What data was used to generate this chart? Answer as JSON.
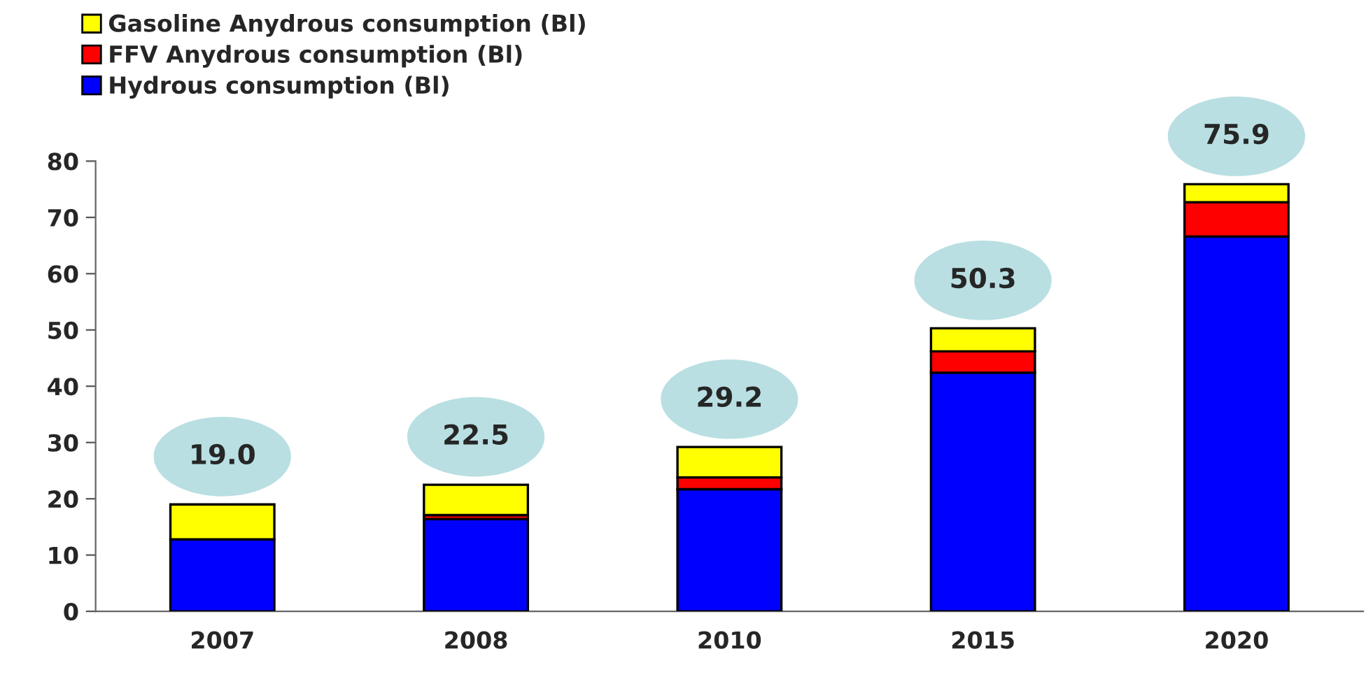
{
  "chart_data": {
    "type": "bar",
    "stacked": true,
    "categories": [
      "2007",
      "2008",
      "2010",
      "2015",
      "2020"
    ],
    "series": [
      {
        "name": "Hydrous consumption (Bl)",
        "color": "#0000ff",
        "values": [
          12.8,
          16.4,
          21.7,
          42.4,
          66.6
        ]
      },
      {
        "name": "FFV Anydrous consumption (Bl)",
        "color": "#ff0000",
        "values": [
          null,
          0.7,
          2.1,
          3.8,
          6.1
        ]
      },
      {
        "name": "Gasoline Anydrous consumption (Bl)",
        "color": "#ffff00",
        "values": [
          6.2,
          5.4,
          5.4,
          4.1,
          3.2
        ]
      }
    ],
    "totals": [
      "19.0",
      "22.5",
      "29.2",
      "50.3",
      "75.9"
    ],
    "ylim": [
      0,
      80
    ],
    "yticks": [
      0,
      10,
      20,
      30,
      40,
      50,
      60,
      70,
      80
    ],
    "grid": false,
    "legend": "top left"
  }
}
